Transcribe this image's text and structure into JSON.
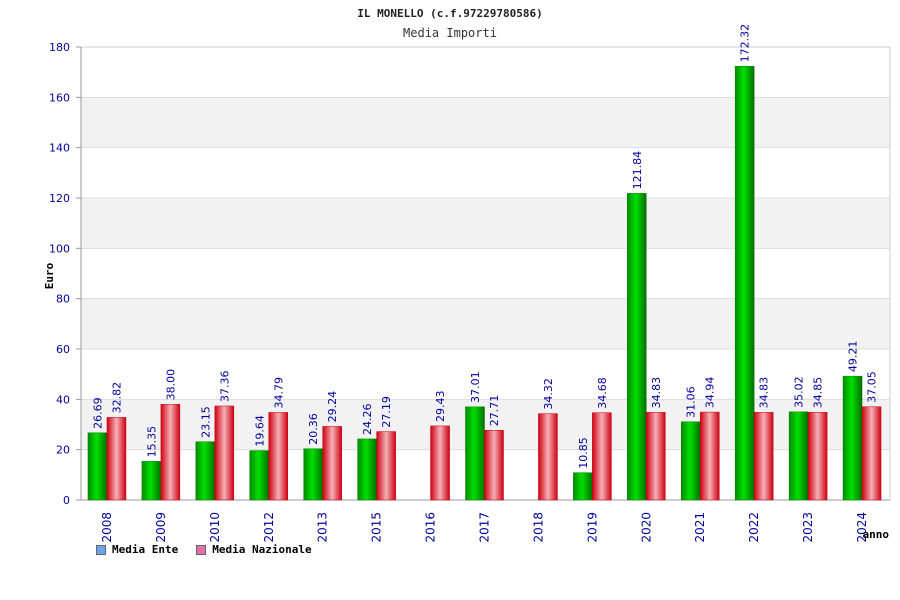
{
  "chart_data": {
    "type": "bar",
    "title": "IL MONELLO (c.f.97229780586)",
    "subtitle": "Media Importi",
    "ylabel": "Euro",
    "xlabel": "anno",
    "ylim": [
      0,
      180
    ],
    "yticks": [
      0,
      20,
      40,
      60,
      80,
      100,
      120,
      140,
      160,
      180
    ],
    "categories": [
      "2008",
      "2009",
      "2010",
      "2012",
      "2013",
      "2015",
      "2016",
      "2017",
      "2018",
      "2019",
      "2020",
      "2021",
      "2022",
      "2023",
      "2024"
    ],
    "series": [
      {
        "name": "Media Ente",
        "color": "#00b000",
        "legend_color": "#6aa5e8",
        "values": [
          26.69,
          15.35,
          23.15,
          19.64,
          20.36,
          24.26,
          null,
          37.01,
          null,
          10.85,
          121.84,
          31.06,
          172.32,
          35.02,
          49.21
        ],
        "labels": [
          "26.69",
          "15.35",
          "23.15",
          "19.64",
          "20.36",
          "24.26",
          "",
          "37.01",
          "",
          "10.85",
          "121.84",
          "31.06",
          "172.32",
          "35.02",
          "49.21"
        ]
      },
      {
        "name": "Media Nazionale",
        "color": "#e01020",
        "legend_color": "#e070a8",
        "values": [
          32.82,
          38.0,
          37.36,
          34.79,
          29.24,
          27.19,
          29.43,
          27.71,
          34.32,
          34.68,
          34.83,
          34.94,
          34.83,
          34.85,
          37.05
        ],
        "labels": [
          "32.82",
          "38.00",
          "37.36",
          "34.79",
          "29.24",
          "27.19",
          "29.43",
          "27.71",
          "34.32",
          "34.68",
          "34.83",
          "34.94",
          "34.83",
          "34.85",
          "37.05"
        ]
      }
    ],
    "grid": true,
    "legend_position": "bottom-left"
  }
}
